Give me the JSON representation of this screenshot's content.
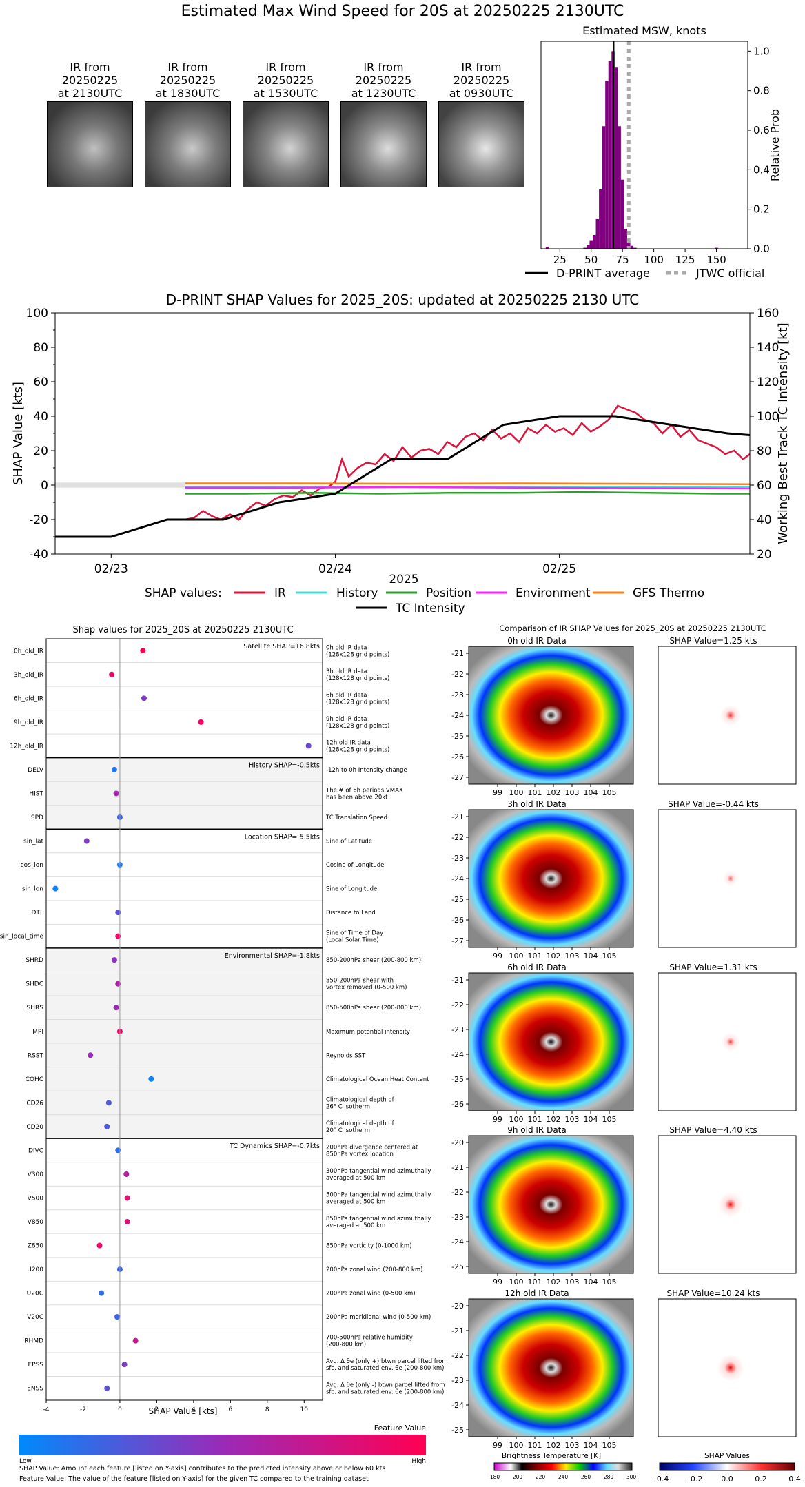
{
  "page_title": "Estimated Max Wind Speed for 20S at 20250225 2130UTC",
  "ir_thumbnails": [
    {
      "label": "IR from\n20250225\nat 2130UTC",
      "line1": "IR from",
      "line2": "20250225",
      "line3": "at 2130UTC",
      "brightness": 0.55
    },
    {
      "label": "IR from\n20250225\nat 1830UTC",
      "line1": "IR from",
      "line2": "20250225",
      "line3": "at 1830UTC",
      "brightness": 0.62
    },
    {
      "label": "IR from\n20250225\nat 1530UTC",
      "line1": "IR from",
      "line2": "20250225",
      "line3": "at 1530UTC",
      "brightness": 0.7
    },
    {
      "label": "IR from\n20250225\nat 1230UTC",
      "line1": "IR from",
      "line2": "20250225",
      "line3": "at 1230UTC",
      "brightness": 0.78
    },
    {
      "label": "IR from\n20250225\nat 0930UTC",
      "line1": "IR from",
      "line2": "20250225",
      "line3": "at 0930UTC",
      "brightness": 0.85
    }
  ],
  "chart_data": [
    {
      "id": "msw_histogram",
      "type": "bar",
      "title": "Estimated MSW, knots",
      "ylabel": "Relative Prob",
      "xlim": [
        10,
        175
      ],
      "ylim": [
        0,
        1.05
      ],
      "xticks": [
        25,
        50,
        75,
        100,
        125,
        150
      ],
      "yticks": [
        0.0,
        0.2,
        0.4,
        0.6,
        0.8,
        1.0
      ],
      "bin_width": 2.5,
      "bins": [
        {
          "x": 15,
          "y": 0.01
        },
        {
          "x": 45,
          "y": 0.005
        },
        {
          "x": 47.5,
          "y": 0.02
        },
        {
          "x": 50,
          "y": 0.04
        },
        {
          "x": 52.5,
          "y": 0.07
        },
        {
          "x": 55,
          "y": 0.15
        },
        {
          "x": 57.5,
          "y": 0.3
        },
        {
          "x": 60,
          "y": 0.62
        },
        {
          "x": 62.5,
          "y": 0.85
        },
        {
          "x": 65,
          "y": 0.95
        },
        {
          "x": 67.5,
          "y": 1.0
        },
        {
          "x": 70,
          "y": 0.92
        },
        {
          "x": 72.5,
          "y": 0.62
        },
        {
          "x": 75,
          "y": 0.35
        },
        {
          "x": 77.5,
          "y": 0.1
        },
        {
          "x": 80,
          "y": 0.04
        },
        {
          "x": 82.5,
          "y": 0.015
        },
        {
          "x": 85,
          "y": 0.005
        },
        {
          "x": 150,
          "y": 0.005
        }
      ],
      "dprint_average": 68,
      "jtwc_official": 80,
      "legend": [
        {
          "label": "D-PRINT average",
          "style": "solid",
          "color": "#000000"
        },
        {
          "label": "JTWC official",
          "style": "dotted",
          "color": "#aaaaaa"
        }
      ]
    },
    {
      "id": "shap_timeseries",
      "type": "line",
      "title": "D-PRINT SHAP Values for 2025_20S: updated at 20250225 2130 UTC",
      "ylabel": "SHAP Value [kts]",
      "y2label": "Working Best Track TC Intensity [kt]",
      "xlabel": "2025",
      "xticks": [
        "02/23",
        "02/24",
        "02/25"
      ],
      "x_tick_days": [
        0,
        1,
        2
      ],
      "xlim_days": [
        -0.25,
        2.85
      ],
      "ylim": [
        -40,
        100
      ],
      "y2lim": [
        20,
        160
      ],
      "yticks": [
        -40,
        -20,
        0,
        20,
        40,
        60,
        80,
        100
      ],
      "y2ticks": [
        20,
        40,
        60,
        80,
        100,
        120,
        140,
        160
      ],
      "legend_prefix": "SHAP values:",
      "series": [
        {
          "name": "IR",
          "color": "#dc143c",
          "axis": "left",
          "x": [
            0.33,
            0.37,
            0.41,
            0.45,
            0.49,
            0.53,
            0.57,
            0.61,
            0.65,
            0.69,
            0.73,
            0.77,
            0.81,
            0.85,
            0.89,
            0.93,
            0.97,
            1.0,
            1.03,
            1.06,
            1.1,
            1.14,
            1.18,
            1.22,
            1.26,
            1.3,
            1.34,
            1.38,
            1.42,
            1.46,
            1.5,
            1.54,
            1.58,
            1.62,
            1.66,
            1.7,
            1.74,
            1.78,
            1.82,
            1.86,
            1.9,
            1.94,
            1.98,
            2.02,
            2.06,
            2.1,
            2.14,
            2.18,
            2.22,
            2.26,
            2.3,
            2.34,
            2.38,
            2.42,
            2.46,
            2.5,
            2.54,
            2.58,
            2.62,
            2.66,
            2.7,
            2.74,
            2.78,
            2.82,
            2.85
          ],
          "y": [
            -20,
            -19,
            -15,
            -18,
            -20,
            -17,
            -20,
            -14,
            -10,
            -12,
            -8,
            -6,
            -7,
            -3,
            -6,
            -2,
            -1,
            2,
            15,
            5,
            10,
            13,
            12,
            18,
            14,
            22,
            16,
            20,
            21,
            18,
            25,
            22,
            28,
            30,
            26,
            32,
            27,
            30,
            25,
            33,
            30,
            35,
            31,
            33,
            29,
            36,
            31,
            34,
            38,
            46,
            44,
            42,
            38,
            36,
            30,
            35,
            28,
            32,
            26,
            24,
            22,
            18,
            20,
            15,
            18
          ]
        },
        {
          "name": "History",
          "color": "#40e0d0",
          "axis": "left",
          "x": [
            0.33,
            2.85
          ],
          "y": [
            -1,
            -1
          ]
        },
        {
          "name": "Position",
          "color": "#2ca02c",
          "axis": "left",
          "x": [
            0.33,
            0.6,
            0.9,
            1.2,
            1.5,
            1.8,
            2.1,
            2.4,
            2.7,
            2.85
          ],
          "y": [
            -5,
            -5,
            -4.5,
            -5,
            -4.5,
            -4.5,
            -4,
            -4.5,
            -5,
            -5
          ]
        },
        {
          "name": "Environment",
          "color": "#ff1fff",
          "axis": "left",
          "x": [
            0.33,
            0.8,
            1.3,
            1.8,
            2.3,
            2.85
          ],
          "y": [
            -1.5,
            -1.5,
            -1.2,
            -1.5,
            -1.8,
            -2
          ]
        },
        {
          "name": "GFS Thermo",
          "color": "#ff7f0e",
          "axis": "left",
          "x": [
            0.33,
            0.8,
            1.3,
            1.8,
            2.3,
            2.85
          ],
          "y": [
            1,
            1,
            0.8,
            1,
            0.8,
            0.5
          ]
        },
        {
          "name": "TC Intensity",
          "color": "#000000",
          "axis": "right",
          "x": [
            -0.25,
            0,
            0.25,
            0.5,
            0.75,
            1.0,
            1.25,
            1.5,
            1.75,
            2.0,
            2.25,
            2.5,
            2.75,
            2.85
          ],
          "y": [
            30,
            30,
            40,
            40,
            50,
            55,
            75,
            75,
            95,
            100,
            100,
            95,
            90,
            89
          ]
        }
      ]
    },
    {
      "id": "shap_features",
      "type": "scatter",
      "title": "Shap values for 2025_20S at 20250225 2130UTC",
      "xlabel": "SHAP Value [kts]",
      "xlim": [
        -4,
        11
      ],
      "xticks": [
        -4,
        -2,
        0,
        2,
        4,
        6,
        8,
        10
      ],
      "groups": [
        {
          "label": "Satellite SHAP=16.8kts",
          "shaded": false,
          "rows": [
            {
              "feature": "0h_old_IR",
              "value": 1.25,
              "fv": 0.95,
              "desc1": "0h old IR data",
              "desc2": "(128x128 grid points)"
            },
            {
              "feature": "3h_old_IR",
              "value": -0.44,
              "fv": 0.9,
              "desc1": "3h old IR data",
              "desc2": "(128x128 grid points)"
            },
            {
              "feature": "6h_old_IR",
              "value": 1.31,
              "fv": 0.4,
              "desc1": "6h old IR data",
              "desc2": "(128x128 grid points)"
            },
            {
              "feature": "9h_old_IR",
              "value": 4.4,
              "fv": 0.92,
              "desc1": "9h old IR data",
              "desc2": "(128x128 grid points)"
            },
            {
              "feature": "12h_old_IR",
              "value": 10.24,
              "fv": 0.35,
              "desc1": "12h old IR data",
              "desc2": "(128x128 grid points)"
            }
          ]
        },
        {
          "label": "History SHAP=-0.5kts",
          "shaded": true,
          "rows": [
            {
              "feature": "DELV",
              "value": -0.3,
              "fv": 0.1,
              "desc1": "-12h to 0h Intensity change",
              "desc2": ""
            },
            {
              "feature": "HIST",
              "value": -0.2,
              "fv": 0.55,
              "desc1": "The # of 6h periods VMAX",
              "desc2": "has been above 20kt"
            },
            {
              "feature": "SPD",
              "value": 0.0,
              "fv": 0.2,
              "desc1": "TC Translation Speed",
              "desc2": ""
            }
          ]
        },
        {
          "label": "Location SHAP=-5.5kts",
          "shaded": false,
          "rows": [
            {
              "feature": "sin_lat",
              "value": -1.8,
              "fv": 0.4,
              "desc1": "Sine of Latitude",
              "desc2": ""
            },
            {
              "feature": "cos_lon",
              "value": 0.0,
              "fv": 0.1,
              "desc1": "Cosine of Longitude",
              "desc2": ""
            },
            {
              "feature": "sin_lon",
              "value": -3.5,
              "fv": 0.05,
              "desc1": "Sine of Longitude",
              "desc2": ""
            },
            {
              "feature": "DTL",
              "value": -0.1,
              "fv": 0.3,
              "desc1": "Distance to Land",
              "desc2": ""
            },
            {
              "feature": "sin_local_time",
              "value": -0.1,
              "fv": 0.9,
              "desc1": "Sine of Time of Day",
              "desc2": "(Local Solar Time)"
            }
          ]
        },
        {
          "label": "Environmental SHAP=-1.8kts",
          "shaded": true,
          "rows": [
            {
              "feature": "SHRD",
              "value": -0.3,
              "fv": 0.45,
              "desc1": "850-200hPa shear (200-800 km)",
              "desc2": ""
            },
            {
              "feature": "SHDC",
              "value": -0.1,
              "fv": 0.6,
              "desc1": "850-200hPa shear with",
              "desc2": "vortex removed (0-500 km)"
            },
            {
              "feature": "SHRS",
              "value": -0.2,
              "fv": 0.5,
              "desc1": "850-500hPa shear (200-800 km)",
              "desc2": ""
            },
            {
              "feature": "MPI",
              "value": 0.0,
              "fv": 0.9,
              "desc1": "Maximum potential intensity",
              "desc2": ""
            },
            {
              "feature": "RSST",
              "value": -1.6,
              "fv": 0.5,
              "desc1": "Reynolds SST",
              "desc2": ""
            },
            {
              "feature": "COHC",
              "value": 1.7,
              "fv": 0.05,
              "desc1": "Climatological Ocean Heat Content",
              "desc2": ""
            },
            {
              "feature": "CD26",
              "value": -0.6,
              "fv": 0.25,
              "desc1": "Climatological depth of",
              "desc2": "26° C isotherm"
            },
            {
              "feature": "CD20",
              "value": -0.7,
              "fv": 0.25,
              "desc1": "Climatological depth of",
              "desc2": "20° C isotherm"
            }
          ]
        },
        {
          "label": "TC Dynamics SHAP=-0.7kts",
          "shaded": false,
          "rows": [
            {
              "feature": "DIVC",
              "value": -0.1,
              "fv": 0.15,
              "desc1": "200hPa divergence centered at",
              "desc2": "850hPa vortex location"
            },
            {
              "feature": "V300",
              "value": 0.35,
              "fv": 0.6,
              "desc1": "300hPa tangential wind azimuthally",
              "desc2": "averaged at 500 km"
            },
            {
              "feature": "V500",
              "value": 0.4,
              "fv": 0.85,
              "desc1": "500hPa tangential wind azimuthally",
              "desc2": "averaged at 500 km"
            },
            {
              "feature": "V850",
              "value": 0.4,
              "fv": 0.8,
              "desc1": "850hPa tangential wind azimuthally",
              "desc2": "averaged at 500 km"
            },
            {
              "feature": "Z850",
              "value": -1.1,
              "fv": 0.9,
              "desc1": "850hPa vorticity (0-1000 km)",
              "desc2": ""
            },
            {
              "feature": "U200",
              "value": 0.0,
              "fv": 0.2,
              "desc1": "200hPa zonal wind (200-800 km)",
              "desc2": ""
            },
            {
              "feature": "U20C",
              "value": -1.0,
              "fv": 0.15,
              "desc1": "200hPa zonal wind (0-500 km)",
              "desc2": ""
            },
            {
              "feature": "V20C",
              "value": -0.15,
              "fv": 0.2,
              "desc1": "200hPa meridional wind (0-500 km)",
              "desc2": ""
            },
            {
              "feature": "RHMD",
              "value": 0.85,
              "fv": 0.7,
              "desc1": "700-500hPa relative humidity",
              "desc2": "(200-800 km)"
            },
            {
              "feature": "EPSS",
              "value": 0.25,
              "fv": 0.4,
              "desc1": "Avg. Δ θe (only +) btwn parcel lifted from",
              "desc2": "sfc. and saturated env. θe (200-800 km)"
            },
            {
              "feature": "ENSS",
              "value": -0.7,
              "fv": 0.3,
              "desc1": "Avg. Δ θe (only -) btwn parcel lifted from",
              "desc2": "sfc. and saturated env. θe (200-800 km)"
            }
          ]
        }
      ]
    }
  ],
  "colorbar_feature": {
    "title": "Feature Value",
    "low": "Low",
    "high": "High",
    "color_low": "#008afb",
    "color_high": "#ff0052"
  },
  "notes": {
    "line1": "SHAP Value: Amount each feature [listed on Y-axis] contributes to the predicted intensity above or below 60 kts",
    "line2": "Feature Value: The value of the feature [listed on Y-axis] for the given TC compared to the training dataset"
  },
  "ir_comparison": {
    "title": "Comparison of IR SHAP Values for 2025_20S at 20250225 2130UTC",
    "rows": [
      {
        "ir_title": "0h old IR Data",
        "shap_title": "SHAP Value=1.25 kts",
        "yticks": [
          "-21",
          "-22",
          "-23",
          "-24",
          "-25",
          "-26",
          "-27"
        ],
        "eye": 0.0,
        "shap_intensity": 0.6
      },
      {
        "ir_title": "3h old IR Data",
        "shap_title": "SHAP Value=-0.44 kts",
        "yticks": [
          "-21",
          "-22",
          "-23",
          "-24",
          "-25",
          "-26",
          "-27"
        ],
        "eye": 0.2,
        "shap_intensity": 0.25
      },
      {
        "ir_title": "6h old IR Data",
        "shap_title": "SHAP Value=1.31 kts",
        "yticks": [
          "-21",
          "-22",
          "-23",
          "-24",
          "-25",
          "-26"
        ],
        "eye": 0.5,
        "shap_intensity": 0.45
      },
      {
        "ir_title": "9h old IR Data",
        "shap_title": "SHAP Value=4.40 kts",
        "yticks": [
          "-20",
          "-21",
          "-22",
          "-23",
          "-24",
          "-25"
        ],
        "eye": 0.9,
        "shap_intensity": 0.8
      },
      {
        "ir_title": "12h old IR Data",
        "shap_title": "SHAP Value=10.24 kts",
        "yticks": [
          "-20",
          "-21",
          "-22",
          "-23",
          "-24",
          "-25"
        ],
        "eye": 1.0,
        "shap_intensity": 0.95
      }
    ],
    "xticks": [
      "99",
      "100",
      "101",
      "102",
      "103",
      "104",
      "105"
    ],
    "bt_colorbar": {
      "title": "Brightness Temperature [K]",
      "ticks": [
        "180",
        "200",
        "220",
        "240",
        "260",
        "280",
        "300"
      ]
    },
    "shap_colorbar": {
      "title": "SHAP Values",
      "ticks": [
        "−0.4",
        "−0.2",
        "0.0",
        "0.2",
        "0.4"
      ]
    }
  }
}
